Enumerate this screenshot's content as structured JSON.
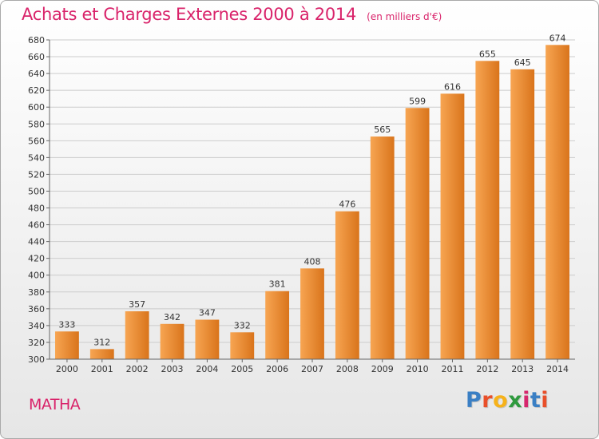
{
  "header": {
    "title": "Achats et Charges Externes 2000 à 2014",
    "unit": "(en milliers d'€)"
  },
  "location": "MATHA",
  "brand": {
    "name": "Proxiti",
    "letter_colors": [
      "#3a7fc4",
      "#e94f2a",
      "#f6b21a",
      "#2f9a3e",
      "#d6266d",
      "#3a7fc4",
      "#e94f2a"
    ]
  },
  "colors": {
    "bar_light": "#f7a552",
    "bar_dark": "#d9741b",
    "title": "#d9236a",
    "grid": "#cccccc"
  },
  "chart_data": {
    "type": "bar",
    "title": "Achats et Charges Externes 2000 à 2014",
    "subtitle": "(en milliers d'€)",
    "categories": [
      "2000",
      "2001",
      "2002",
      "2003",
      "2004",
      "2005",
      "2006",
      "2007",
      "2008",
      "2009",
      "2010",
      "2011",
      "2012",
      "2013",
      "2014"
    ],
    "values": [
      333,
      312,
      357,
      342,
      347,
      332,
      381,
      408,
      476,
      565,
      599,
      616,
      655,
      645,
      674
    ],
    "ylim": [
      300,
      680
    ],
    "yticks": [
      300,
      320,
      340,
      360,
      380,
      400,
      420,
      440,
      460,
      480,
      500,
      520,
      540,
      560,
      580,
      600,
      620,
      640,
      660,
      680
    ],
    "grid": true,
    "xlabel": "",
    "ylabel": ""
  }
}
